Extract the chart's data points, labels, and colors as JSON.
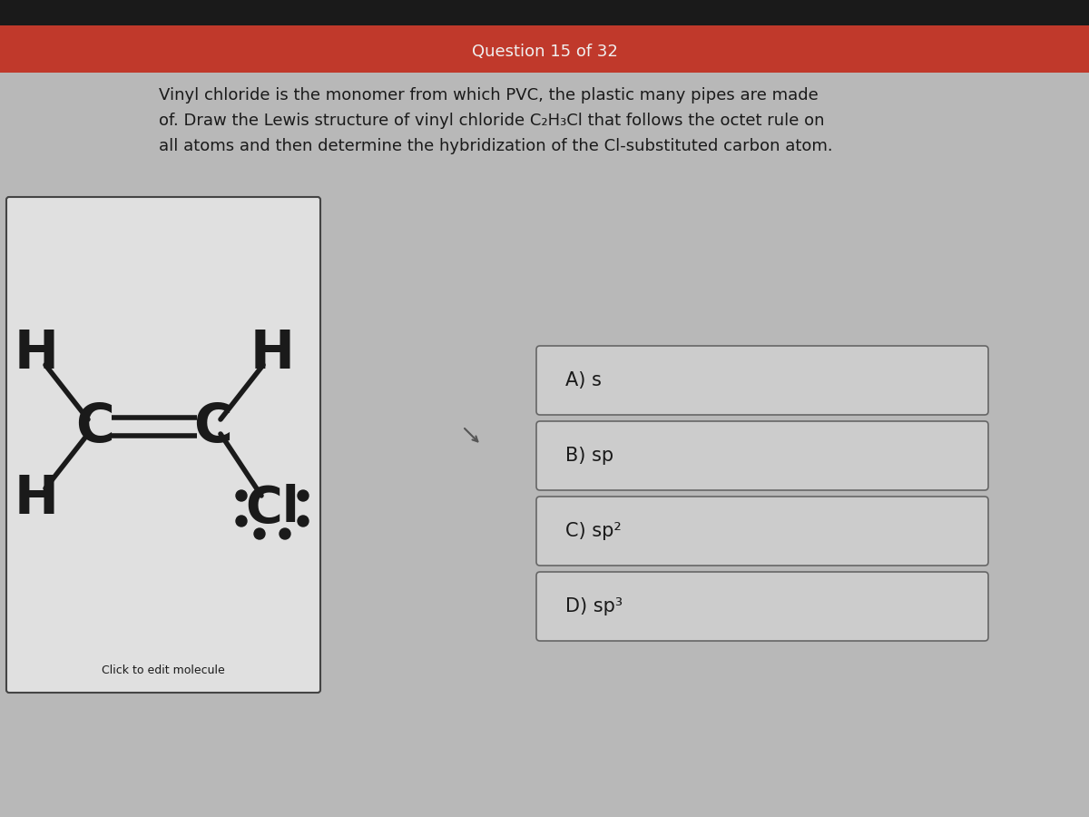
{
  "question_header": "Question 15 of 32",
  "header_top_color": "#1a1a1a",
  "header_red_color": "#c0392b",
  "header_text_color": "#f0f0f0",
  "body_bg_color": "#b8b8b8",
  "question_text_line1": "Vinyl chloride is the monomer from which PVC, the plastic many pipes are made",
  "question_text_line2": "of. Draw the Lewis structure of vinyl chloride C₂H₃Cl that follows the octet rule on",
  "question_text_line3": "all atoms and then determine the hybridization of the Cl-substituted carbon atom.",
  "molecule_box_bg": "#e0e0e0",
  "molecule_box_edge": "#444444",
  "click_text": "Click to edit molecule",
  "answer_choices": [
    "A) s",
    "B) sp",
    "C) sp²",
    "D) sp³"
  ],
  "answer_box_bg": "#cccccc",
  "answer_box_edge": "#666666",
  "dark_color": "#1a1a1a",
  "bond_color": "#1a1a1a"
}
